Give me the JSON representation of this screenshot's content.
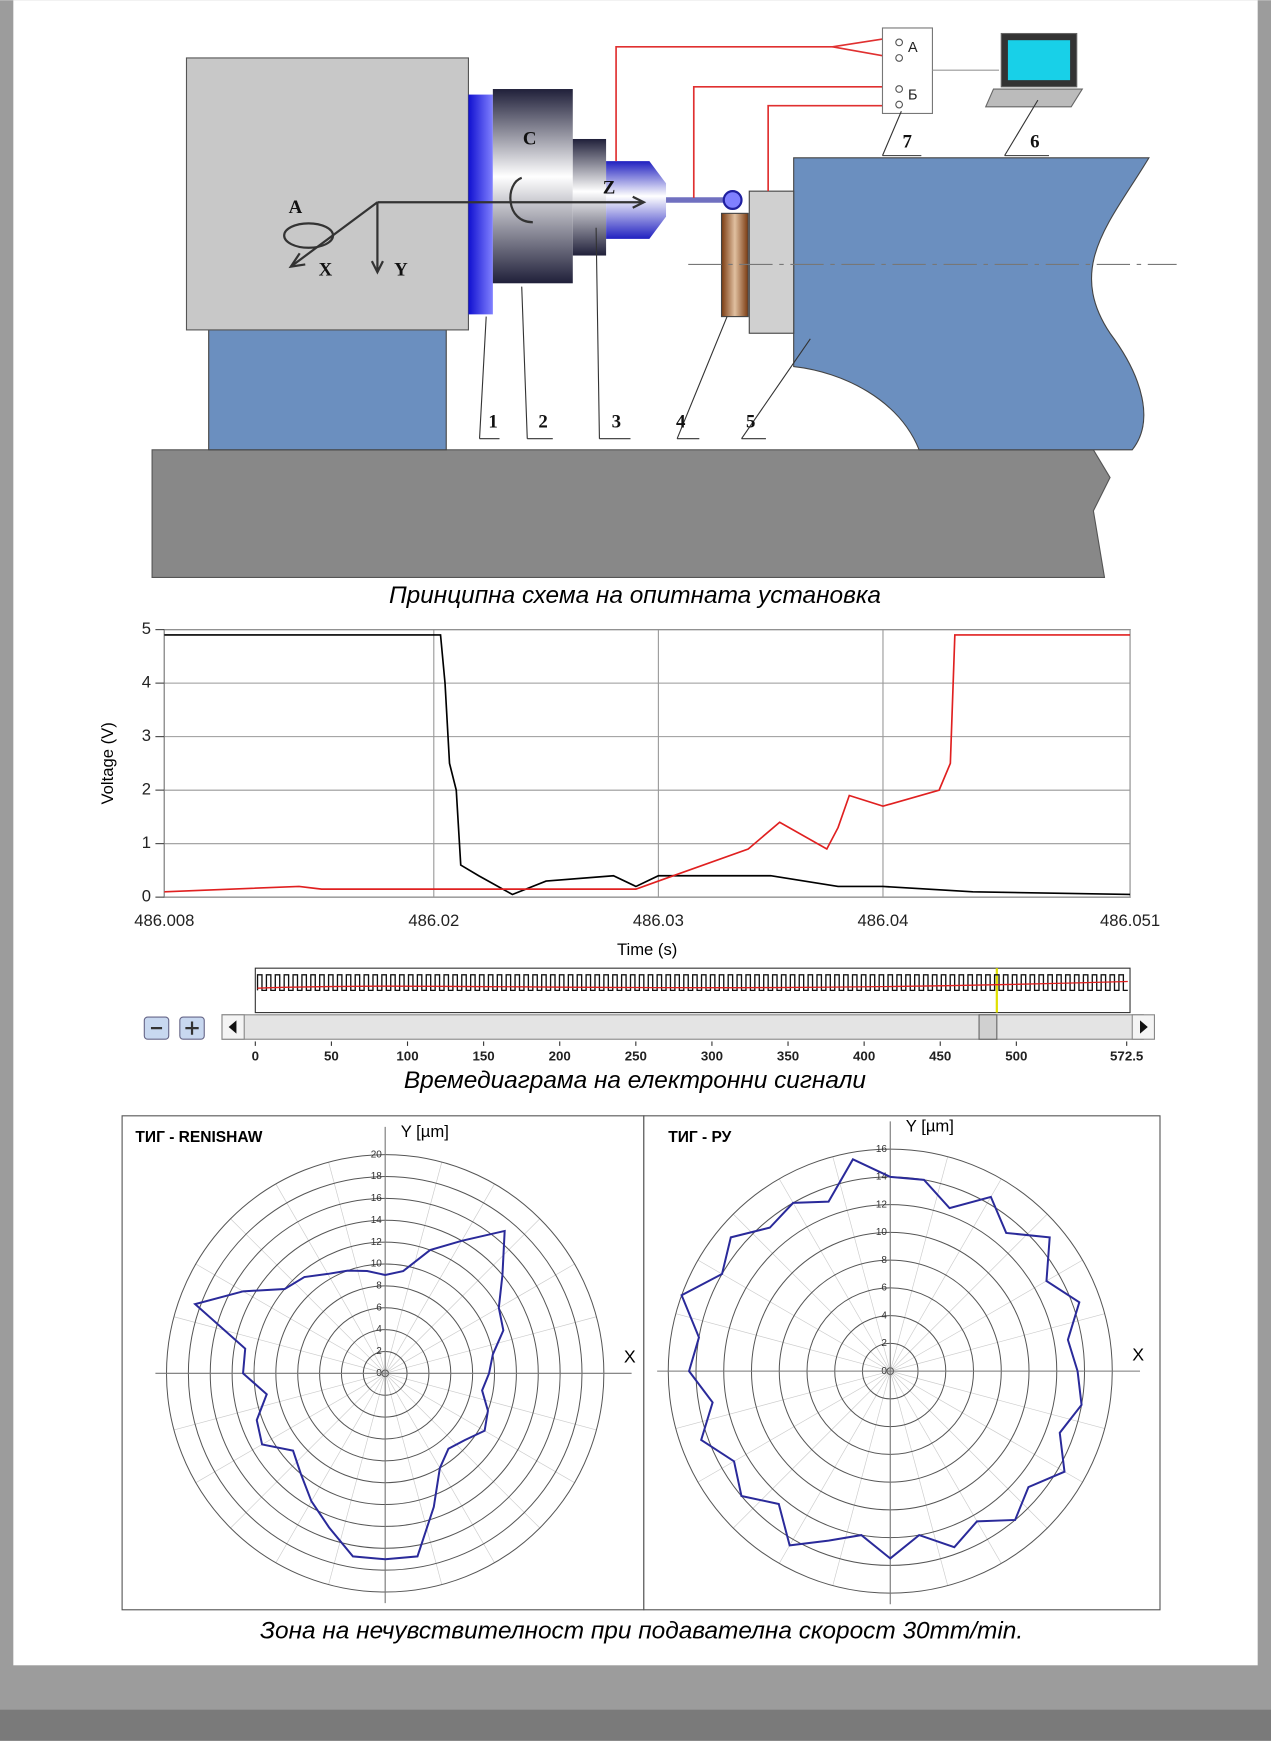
{
  "diagram": {
    "labels": [
      "1",
      "2",
      "3",
      "4",
      "5",
      "6",
      "7"
    ],
    "axis_labels": [
      "A",
      "X",
      "Y",
      "Z",
      "C"
    ],
    "terminals": [
      "А",
      "Б"
    ]
  },
  "captions": [
    "Принципна схема на опитната установка",
    "Времедиаграма на електронни сигнали",
    "Зона на нечувствителност при подавателна скорост 30mm/min."
  ],
  "chart_data": [
    {
      "type": "line",
      "x_label": "Time (s)",
      "y_label": "Voltage (V)",
      "xlim": [
        486.008,
        486.051
      ],
      "xticks": [
        486.008,
        486.02,
        486.03,
        486.04,
        486.051
      ],
      "ylim": [
        0,
        5
      ],
      "yticks": [
        0,
        1,
        2,
        3,
        4,
        5
      ],
      "grid": true,
      "series": [
        {
          "color": "#000000",
          "x": [
            486.008,
            486.0203,
            486.0205,
            486.0207,
            486.021,
            486.0212,
            486.022,
            486.0235,
            486.025,
            486.028,
            486.029,
            486.03,
            486.035,
            486.038,
            486.04,
            486.044,
            486.051
          ],
          "values": [
            4.9,
            4.9,
            4.0,
            2.5,
            2.0,
            0.6,
            0.4,
            0.05,
            0.3,
            0.4,
            0.2,
            0.4,
            0.4,
            0.2,
            0.2,
            0.1,
            0.05
          ]
        },
        {
          "color": "#e02020",
          "x": [
            486.008,
            486.014,
            486.015,
            486.029,
            486.03,
            486.034,
            486.0354,
            486.0375,
            486.038,
            486.0385,
            486.04,
            486.0425,
            486.043,
            486.0432,
            486.051
          ],
          "values": [
            0.1,
            0.2,
            0.15,
            0.15,
            0.3,
            0.9,
            1.4,
            0.9,
            1.3,
            1.9,
            1.7,
            2.0,
            2.5,
            4.9,
            4.9
          ]
        }
      ]
    },
    {
      "type": "scrollbar",
      "xlim": [
        0,
        572.5
      ],
      "xticks": [
        0,
        50,
        100,
        150,
        200,
        250,
        300,
        350,
        400,
        450,
        500,
        572.5
      ]
    },
    {
      "type": "polar",
      "title": "ТИГ - RENISHAW",
      "y_label": "Y [µm]",
      "x_label": "X",
      "color": "#2a2a9a",
      "rlim": [
        0,
        20
      ],
      "rticks": [
        0,
        2,
        4,
        6,
        8,
        10,
        12,
        14,
        16,
        18,
        20
      ],
      "theta": [
        0,
        10,
        20,
        30,
        40,
        50,
        60,
        70,
        80,
        90,
        100,
        110,
        120,
        130,
        140,
        150,
        160,
        170,
        180,
        190,
        200,
        210,
        220,
        230,
        240,
        250,
        260,
        270,
        280,
        290,
        300,
        310,
        320,
        330,
        340,
        350
      ],
      "values": [
        9.5,
        10,
        11.5,
        12,
        14,
        17,
        14,
        12,
        9.5,
        9,
        9.5,
        10,
        10.5,
        11.5,
        12,
        15,
        18.5,
        13,
        13,
        11,
        12.5,
        13,
        11,
        12,
        13.5,
        15,
        17,
        17,
        17,
        13,
        10,
        9,
        9.5,
        10.5,
        10,
        9
      ]
    },
    {
      "type": "polar",
      "title": "ТИГ - РУ",
      "y_label": "Y [µm]",
      "x_label": "X",
      "color": "#2a2a9a",
      "rlim": [
        0,
        16
      ],
      "rticks": [
        0,
        2,
        4,
        6,
        8,
        10,
        12,
        14,
        16
      ],
      "theta": [
        0,
        10,
        20,
        30,
        40,
        50,
        60,
        70,
        80,
        90,
        100,
        110,
        120,
        130,
        140,
        150,
        160,
        170,
        180,
        190,
        200,
        210,
        220,
        230,
        240,
        250,
        260,
        270,
        280,
        290,
        300,
        310,
        320,
        330,
        340,
        350
      ],
      "values": [
        13.5,
        13,
        14.5,
        13,
        15,
        13,
        14.5,
        12.5,
        14,
        14,
        15.5,
        13,
        14,
        13.5,
        15,
        14,
        16,
        14,
        14.5,
        13,
        14.5,
        13,
        14,
        12.5,
        14.5,
        13,
        12,
        13.5,
        12,
        13.5,
        12.5,
        14,
        13,
        14.5,
        13,
        14
      ]
    }
  ]
}
